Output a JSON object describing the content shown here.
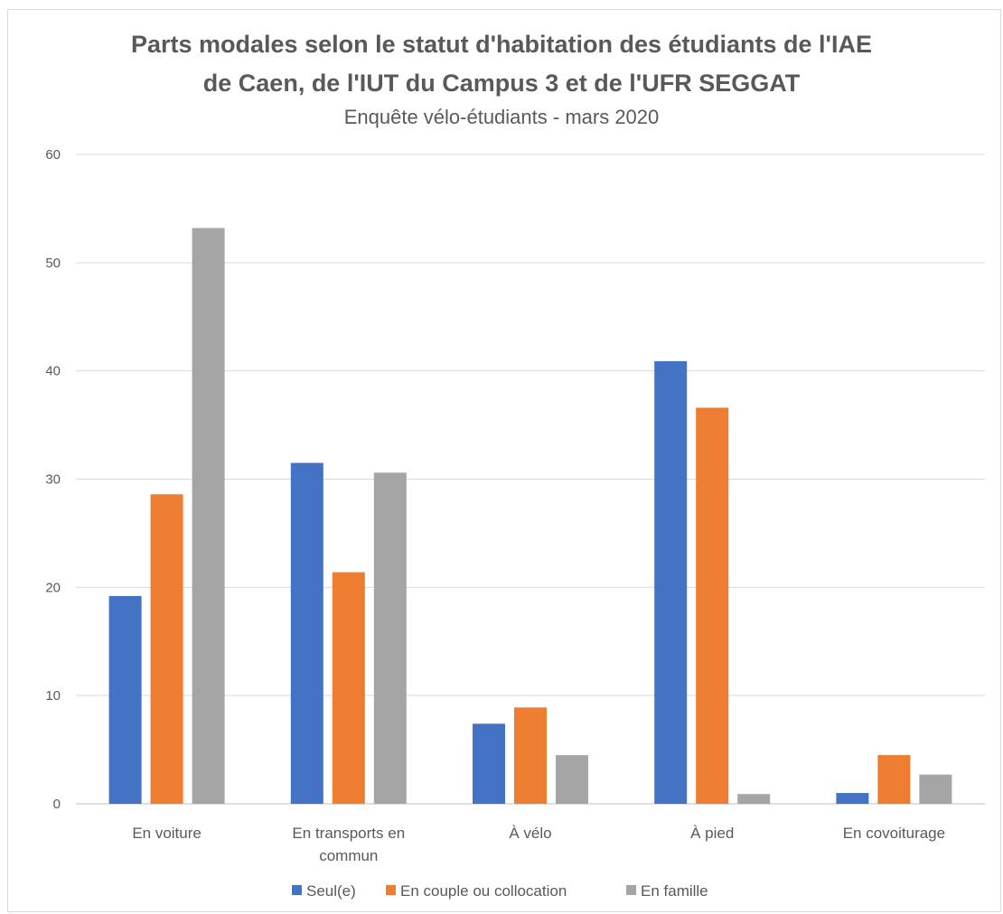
{
  "chart_data": {
    "type": "bar",
    "title_lines": [
      "Parts modales selon le statut d'habitation des étudiants de l'IAE",
      "de Caen, de l'IUT du Campus 3 et de l'UFR SEGGAT"
    ],
    "subtitle": "Enquête vélo-étudiants - mars 2020",
    "categories": [
      [
        "En voiture"
      ],
      [
        "En transports en",
        "commun"
      ],
      [
        "À vélo"
      ],
      [
        "À pied"
      ],
      [
        "En covoiturage"
      ]
    ],
    "series": [
      {
        "name": "Seul(e)",
        "color": "#4472c4",
        "values": [
          19.2,
          31.5,
          7.4,
          40.9,
          1.0
        ]
      },
      {
        "name": "En couple  ou collocation",
        "color": "#ed7d31",
        "values": [
          28.6,
          21.4,
          8.9,
          36.6,
          4.5
        ]
      },
      {
        "name": "En famille",
        "color": "#a5a5a5",
        "values": [
          53.2,
          30.6,
          4.5,
          0.9,
          2.7
        ]
      }
    ],
    "ylim": [
      0,
      60
    ],
    "yticks": [
      "0",
      "10",
      "20",
      "30",
      "40",
      "50",
      "60"
    ],
    "grid": true,
    "legend_position": "bottom"
  }
}
